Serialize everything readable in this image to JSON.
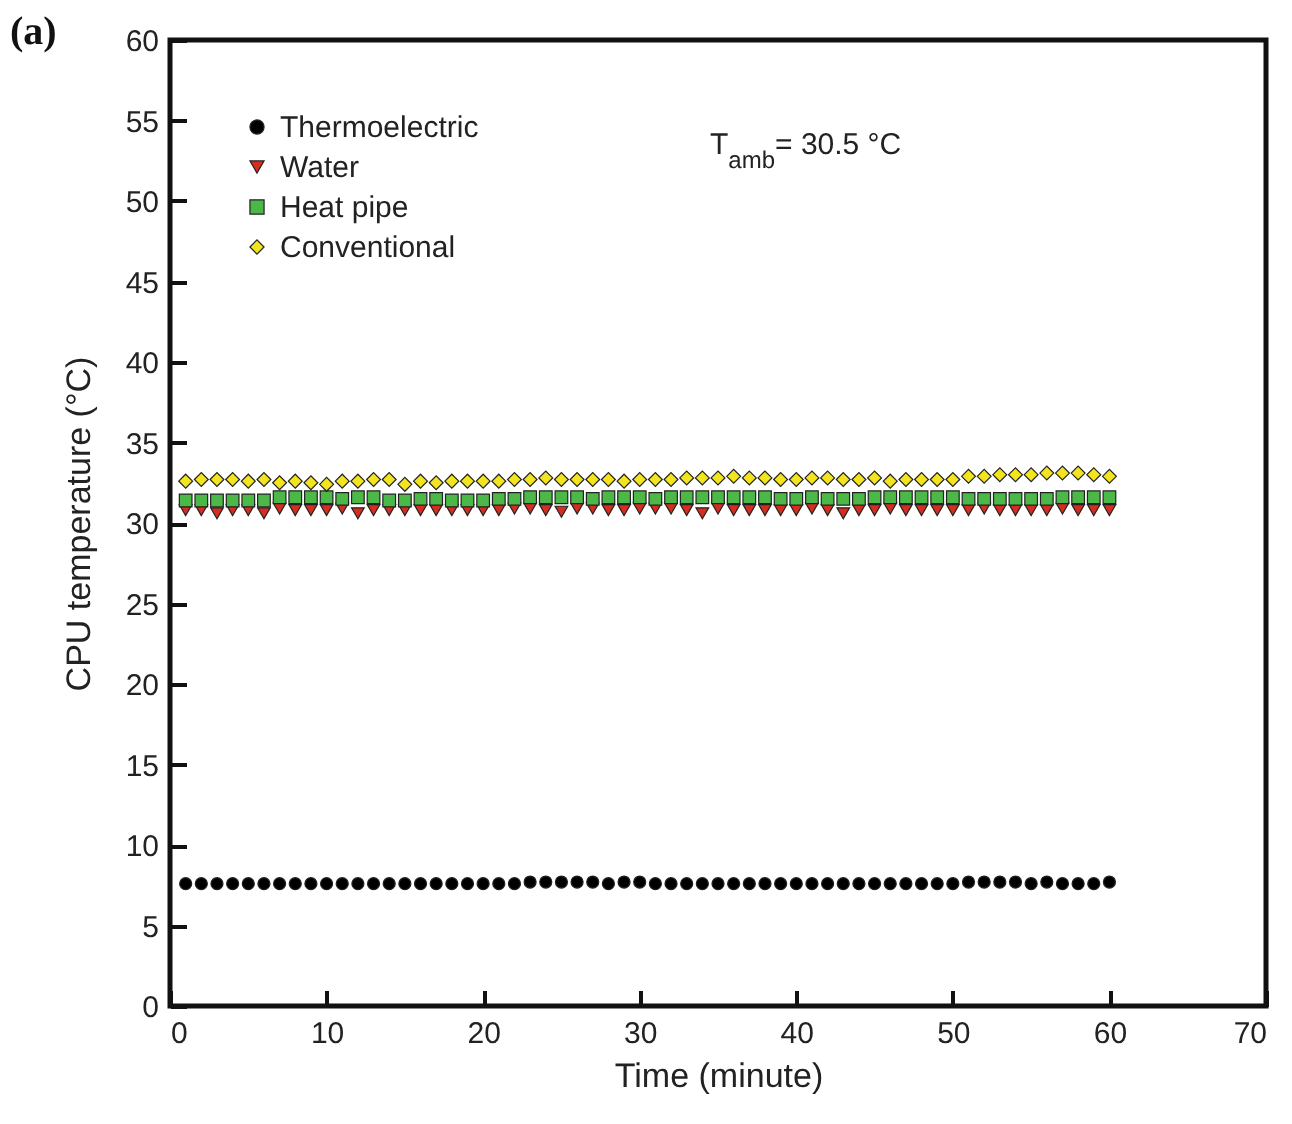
{
  "chart_data": {
    "type": "scatter",
    "title": "(a)",
    "xlabel": "Time (minute)",
    "ylabel": "CPU temperature (°C)",
    "x": [
      1,
      2,
      3,
      4,
      5,
      6,
      7,
      8,
      9,
      10,
      11,
      12,
      13,
      14,
      15,
      16,
      17,
      18,
      19,
      20,
      21,
      22,
      23,
      24,
      25,
      26,
      27,
      28,
      29,
      30,
      31,
      32,
      33,
      34,
      35,
      36,
      37,
      38,
      39,
      40,
      41,
      42,
      43,
      44,
      45,
      46,
      47,
      48,
      49,
      50,
      51,
      52,
      53,
      54,
      55,
      56,
      57,
      58,
      59,
      60
    ],
    "series": [
      {
        "name": "Thermoelectric",
        "color": "#000000",
        "marker": "circle",
        "values": [
          7.6,
          7.6,
          7.6,
          7.6,
          7.6,
          7.6,
          7.6,
          7.6,
          7.6,
          7.6,
          7.6,
          7.6,
          7.6,
          7.6,
          7.6,
          7.6,
          7.6,
          7.6,
          7.6,
          7.6,
          7.6,
          7.6,
          7.7,
          7.7,
          7.7,
          7.7,
          7.7,
          7.6,
          7.7,
          7.7,
          7.6,
          7.6,
          7.6,
          7.6,
          7.6,
          7.6,
          7.6,
          7.6,
          7.6,
          7.6,
          7.6,
          7.6,
          7.6,
          7.6,
          7.6,
          7.6,
          7.6,
          7.6,
          7.6,
          7.6,
          7.7,
          7.7,
          7.7,
          7.7,
          7.6,
          7.7,
          7.6,
          7.6,
          7.6,
          7.7
        ]
      },
      {
        "name": "Water",
        "color": "#d62d20",
        "marker": "triangle",
        "values": [
          30.8,
          30.8,
          30.6,
          30.8,
          30.8,
          30.6,
          30.9,
          30.8,
          30.8,
          30.8,
          30.9,
          30.6,
          30.8,
          30.8,
          30.8,
          30.8,
          30.8,
          30.8,
          30.8,
          30.8,
          30.8,
          30.9,
          30.9,
          30.8,
          30.7,
          30.9,
          30.9,
          30.8,
          30.8,
          30.9,
          30.9,
          30.9,
          30.8,
          30.6,
          30.9,
          30.8,
          30.8,
          30.8,
          30.8,
          30.8,
          30.9,
          30.8,
          30.6,
          30.8,
          30.8,
          30.9,
          30.8,
          30.8,
          30.8,
          30.8,
          30.8,
          30.9,
          30.8,
          30.8,
          30.8,
          30.8,
          30.9,
          30.8,
          30.8,
          30.8
        ]
      },
      {
        "name": "Heat pipe",
        "color": "#4cb848",
        "marker": "square",
        "values": [
          31.4,
          31.4,
          31.4,
          31.4,
          31.4,
          31.4,
          31.6,
          31.6,
          31.6,
          31.6,
          31.5,
          31.6,
          31.6,
          31.4,
          31.4,
          31.5,
          31.5,
          31.4,
          31.4,
          31.4,
          31.5,
          31.5,
          31.6,
          31.6,
          31.6,
          31.6,
          31.5,
          31.6,
          31.6,
          31.6,
          31.5,
          31.6,
          31.6,
          31.6,
          31.6,
          31.6,
          31.6,
          31.6,
          31.5,
          31.5,
          31.6,
          31.5,
          31.5,
          31.5,
          31.6,
          31.6,
          31.6,
          31.6,
          31.6,
          31.6,
          31.5,
          31.5,
          31.5,
          31.5,
          31.5,
          31.5,
          31.6,
          31.6,
          31.6,
          31.6
        ]
      },
      {
        "name": "Conventional",
        "color": "#f2e41e",
        "marker": "diamond",
        "values": [
          32.6,
          32.7,
          32.7,
          32.7,
          32.6,
          32.7,
          32.5,
          32.6,
          32.5,
          32.4,
          32.6,
          32.6,
          32.7,
          32.7,
          32.4,
          32.6,
          32.5,
          32.6,
          32.6,
          32.6,
          32.6,
          32.7,
          32.7,
          32.8,
          32.7,
          32.7,
          32.7,
          32.7,
          32.6,
          32.7,
          32.7,
          32.7,
          32.8,
          32.8,
          32.8,
          32.9,
          32.8,
          32.8,
          32.7,
          32.7,
          32.8,
          32.8,
          32.7,
          32.7,
          32.8,
          32.6,
          32.7,
          32.7,
          32.7,
          32.7,
          32.9,
          32.9,
          33.0,
          33.0,
          33.0,
          33.1,
          33.1,
          33.1,
          33.0,
          32.9
        ]
      }
    ],
    "xlim": [
      0,
      70
    ],
    "xticks": [
      0,
      10,
      20,
      30,
      40,
      50,
      60,
      70
    ],
    "ylim": [
      0,
      60
    ],
    "yticks": [
      0,
      5,
      10,
      15,
      20,
      25,
      30,
      35,
      40,
      45,
      50,
      55,
      60
    ],
    "annotations": [
      "T$_{amb}$= 30.5  °C"
    ],
    "legend": "top left",
    "grid": false
  }
}
